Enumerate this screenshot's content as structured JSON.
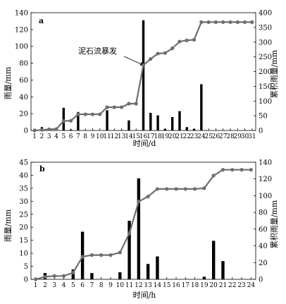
{
  "chart_data": [
    {
      "type": "bar+line",
      "panel_label": "a",
      "xlabel": "时间/d",
      "ylabel_left": "雨量/mm",
      "ylabel_right": "累积雨量/mm",
      "ylim_left": [
        0,
        140
      ],
      "ylim_right": [
        0,
        400
      ],
      "yticks_left": [
        0,
        20,
        40,
        60,
        80,
        100,
        120,
        140
      ],
      "yticks_right": [
        0,
        50,
        100,
        150,
        200,
        250,
        300,
        350,
        400
      ],
      "categories": [
        "1",
        "2",
        "3",
        "4",
        "5",
        "6",
        "7",
        "8",
        "9",
        "10",
        "11",
        "12",
        "13",
        "14",
        "15",
        "16",
        "17",
        "18",
        "19",
        "20",
        "21",
        "22",
        "23",
        "24",
        "25",
        "26",
        "27",
        "28",
        "29",
        "30",
        "31"
      ],
      "series": [
        {
          "kind": "bar",
          "axis": "left",
          "color": "#000000",
          "values": [
            0,
            4,
            2,
            1,
            27,
            1,
            22,
            0,
            0,
            0,
            24,
            0,
            0,
            12,
            0,
            131,
            21,
            18,
            2,
            16,
            23,
            4,
            2,
            55,
            0,
            0,
            0,
            0,
            0,
            0,
            0
          ]
        },
        {
          "kind": "line",
          "axis": "right",
          "color": "#6e6e6e",
          "values": [
            0,
            2,
            4,
            5,
            32,
            33,
            55,
            55,
            55,
            55,
            79,
            79,
            79,
            91,
            91,
            222,
            243,
            261,
            263,
            279,
            302,
            306,
            308,
            368,
            368,
            368,
            368,
            368,
            368,
            368,
            368
          ]
        }
      ],
      "annotations": [
        {
          "text": "泥石流暴发",
          "x": "16"
        }
      ]
    },
    {
      "type": "bar+line",
      "panel_label": "b",
      "xlabel": "时间/h",
      "ylabel_left": "雨量/mm",
      "ylabel_right": "累积雨量/mm",
      "ylim_left": [
        0,
        45
      ],
      "ylim_right": [
        0,
        140
      ],
      "yticks_left": [
        0,
        5,
        10,
        15,
        20,
        25,
        30,
        35,
        40,
        45
      ],
      "yticks_right": [
        0,
        20,
        40,
        60,
        80,
        100,
        120,
        140
      ],
      "categories": [
        "1",
        "2",
        "3",
        "4",
        "5",
        "6",
        "7",
        "8",
        "9",
        "10",
        "11",
        "12",
        "13",
        "14",
        "15",
        "16",
        "17",
        "18",
        "19",
        "20",
        "21",
        "22",
        "23",
        "24"
      ],
      "series": [
        {
          "kind": "bar",
          "axis": "left",
          "color": "#000000",
          "values": [
            0.2,
            2.4,
            0,
            0,
            3.8,
            18.3,
            2.4,
            0,
            0,
            2.7,
            22.5,
            38.8,
            5.9,
            8.8,
            0,
            0,
            0,
            0,
            1,
            14.8,
            7,
            0,
            0,
            0
          ]
        },
        {
          "kind": "line",
          "axis": "right",
          "color": "#6e6e6e",
          "values": [
            0,
            3,
            4,
            4,
            8,
            27,
            29,
            29,
            29,
            32,
            55,
            93,
            99,
            108,
            108,
            108,
            108,
            108,
            109,
            124,
            131,
            131,
            131,
            131
          ]
        }
      ]
    }
  ]
}
